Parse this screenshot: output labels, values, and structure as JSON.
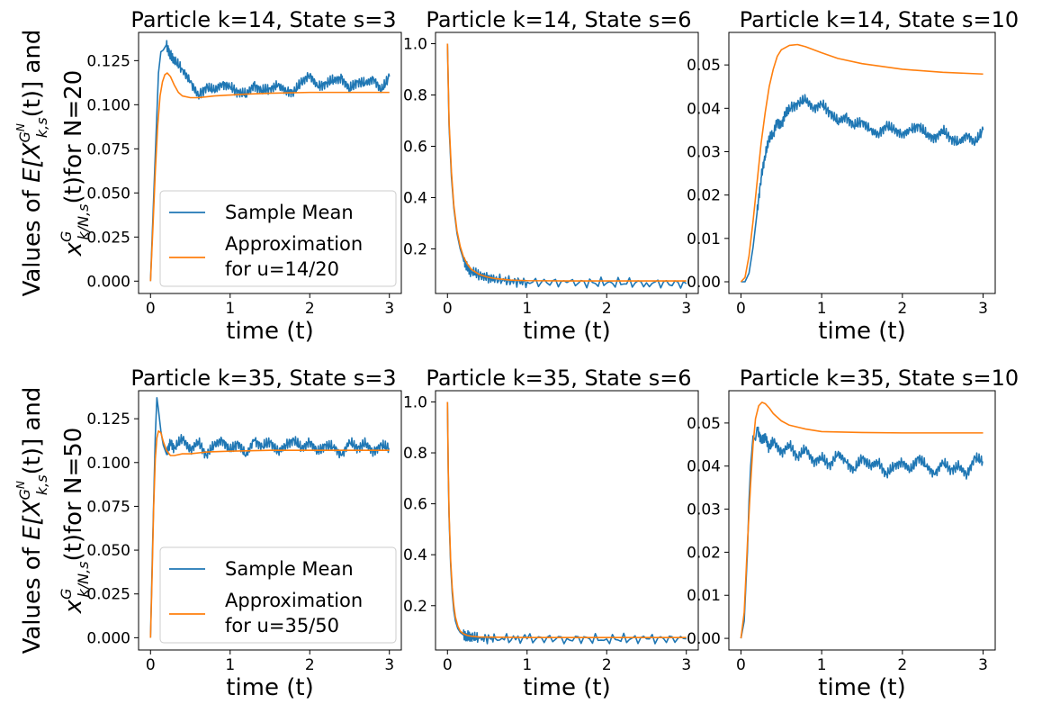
{
  "figure": {
    "row_ylabels": [
      {
        "line1": "Values of ",
        "italic": "E[X",
        "sup": "G",
        "supsup": "N",
        "sub": "k,s",
        "after": "(t)] and",
        "line2_x": "x",
        "line2_sup": "G",
        "line2_sub": "k/N,s",
        "line2_after": "(t)for N=20"
      },
      {
        "line1": "Values of ",
        "italic": "E[X",
        "sup": "G",
        "supsup": "N",
        "sub": "k,s",
        "after": "(t)] and",
        "line2_x": "x",
        "line2_sup": "G",
        "line2_sub": "k/N,s",
        "line2_after": "(t)for N=50"
      }
    ]
  },
  "colors": {
    "sample_mean": "#1f77b4",
    "approximation": "#ff7f0e",
    "axes": "#000000"
  },
  "chart_data": [
    {
      "type": "line",
      "title": "Particle k=14, State s=3",
      "xlabel": "time (t)",
      "ylabel": "",
      "xlim": [
        -0.15,
        3.15
      ],
      "ylim": [
        -0.007,
        0.141
      ],
      "xticks": [
        "0",
        "1",
        "2",
        "3"
      ],
      "xtick_values": [
        0,
        1,
        2,
        3
      ],
      "yticks": [
        "0.000",
        "0.025",
        "0.050",
        "0.075",
        "0.100",
        "0.125"
      ],
      "ytick_values": [
        0,
        0.025,
        0.05,
        0.075,
        0.1,
        0.125
      ],
      "legend": {
        "placement": "lower-right",
        "entries": [
          "Sample Mean",
          "Approximation",
          " for u=14/20"
        ]
      },
      "series": [
        {
          "name": "Sample Mean",
          "color": "#1f77b4",
          "x": [
            0,
            0.05,
            0.1,
            0.13,
            0.16,
            0.2,
            0.25,
            0.3,
            0.4,
            0.5,
            0.6,
            0.7,
            0.8,
            0.9,
            1.0,
            1.1,
            1.2,
            1.3,
            1.4,
            1.5,
            1.6,
            1.7,
            1.8,
            1.9,
            2.0,
            2.1,
            2.2,
            2.3,
            2.4,
            2.5,
            2.6,
            2.7,
            2.8,
            2.9,
            3.0
          ],
          "values": [
            0.0,
            0.06,
            0.118,
            0.13,
            0.131,
            0.134,
            0.128,
            0.125,
            0.12,
            0.113,
            0.105,
            0.11,
            0.108,
            0.112,
            0.11,
            0.107,
            0.106,
            0.111,
            0.108,
            0.109,
            0.111,
            0.108,
            0.107,
            0.113,
            0.117,
            0.11,
            0.112,
            0.114,
            0.115,
            0.109,
            0.113,
            0.112,
            0.115,
            0.108,
            0.116
          ]
        },
        {
          "name": "Approximation",
          "color": "#ff7f0e",
          "x": [
            0,
            0.03,
            0.06,
            0.09,
            0.12,
            0.15,
            0.18,
            0.21,
            0.25,
            0.3,
            0.35,
            0.4,
            0.5,
            0.6,
            0.7,
            0.8,
            1.0,
            1.2,
            1.5,
            2.0,
            2.5,
            3.0
          ],
          "values": [
            0.0,
            0.03,
            0.062,
            0.088,
            0.105,
            0.113,
            0.117,
            0.118,
            0.116,
            0.111,
            0.107,
            0.105,
            0.104,
            0.104,
            0.1045,
            0.105,
            0.1055,
            0.106,
            0.1065,
            0.107,
            0.107,
            0.107
          ]
        }
      ]
    },
    {
      "type": "line",
      "title": "Particle k=14, State s=6",
      "xlabel": "time (t)",
      "ylabel": "",
      "xlim": [
        -0.15,
        3.15
      ],
      "ylim": [
        0.026,
        1.044
      ],
      "xticks": [
        "0",
        "1",
        "2",
        "3"
      ],
      "xtick_values": [
        0,
        1,
        2,
        3
      ],
      "yticks": [
        "0.2",
        "0.4",
        "0.6",
        "0.8",
        "1.0"
      ],
      "ytick_values": [
        0.2,
        0.4,
        0.6,
        0.8,
        1.0
      ],
      "series": [
        {
          "name": "Sample Mean",
          "color": "#1f77b4",
          "x": [
            0,
            0.02,
            0.05,
            0.08,
            0.12,
            0.16,
            0.2,
            0.25,
            0.3,
            0.4,
            0.5,
            0.6,
            0.8,
            1.0,
            1.5,
            2.0,
            2.5,
            3.0
          ],
          "values": [
            1.0,
            0.68,
            0.48,
            0.36,
            0.26,
            0.2,
            0.16,
            0.13,
            0.11,
            0.098,
            0.088,
            0.082,
            0.074,
            0.07,
            0.069,
            0.067,
            0.068,
            0.064
          ]
        },
        {
          "name": "Approximation",
          "color": "#ff7f0e",
          "x": [
            0,
            0.02,
            0.05,
            0.08,
            0.12,
            0.16,
            0.2,
            0.25,
            0.3,
            0.4,
            0.5,
            0.6,
            0.8,
            1.0,
            1.5,
            2.0,
            2.5,
            3.0
          ],
          "values": [
            1.0,
            0.7,
            0.5,
            0.37,
            0.27,
            0.21,
            0.17,
            0.14,
            0.12,
            0.1,
            0.09,
            0.084,
            0.078,
            0.076,
            0.075,
            0.075,
            0.075,
            0.075
          ]
        }
      ]
    },
    {
      "type": "line",
      "title": "Particle k=14, State s=10",
      "xlabel": "time (t)",
      "ylabel": "",
      "xlim": [
        -0.15,
        3.15
      ],
      "ylim": [
        -0.0027,
        0.0575
      ],
      "xticks": [
        "0",
        "1",
        "2",
        "3"
      ],
      "xtick_values": [
        0,
        1,
        2,
        3
      ],
      "yticks": [
        "0.00",
        "0.01",
        "0.02",
        "0.03",
        "0.04",
        "0.05"
      ],
      "ytick_values": [
        0,
        0.01,
        0.02,
        0.03,
        0.04,
        0.05
      ],
      "series": [
        {
          "name": "Sample Mean",
          "color": "#1f77b4",
          "x": [
            0,
            0.05,
            0.1,
            0.15,
            0.2,
            0.25,
            0.3,
            0.35,
            0.4,
            0.45,
            0.5,
            0.55,
            0.6,
            0.7,
            0.8,
            0.9,
            1.0,
            1.1,
            1.2,
            1.3,
            1.4,
            1.5,
            1.6,
            1.7,
            1.8,
            1.9,
            2.0,
            2.1,
            2.2,
            2.3,
            2.4,
            2.5,
            2.6,
            2.7,
            2.8,
            2.9,
            3.0
          ],
          "values": [
            0.0,
            0.0,
            0.002,
            0.008,
            0.016,
            0.024,
            0.029,
            0.033,
            0.034,
            0.037,
            0.036,
            0.039,
            0.04,
            0.041,
            0.042,
            0.04,
            0.041,
            0.039,
            0.037,
            0.038,
            0.036,
            0.037,
            0.035,
            0.034,
            0.036,
            0.035,
            0.034,
            0.035,
            0.036,
            0.034,
            0.033,
            0.035,
            0.033,
            0.032,
            0.034,
            0.032,
            0.035
          ]
        },
        {
          "name": "Approximation",
          "color": "#ff7f0e",
          "x": [
            0,
            0.05,
            0.1,
            0.15,
            0.2,
            0.25,
            0.3,
            0.35,
            0.4,
            0.45,
            0.5,
            0.6,
            0.7,
            0.8,
            1.0,
            1.2,
            1.5,
            2.0,
            2.5,
            3.0
          ],
          "values": [
            0.0,
            0.001,
            0.006,
            0.014,
            0.023,
            0.032,
            0.039,
            0.045,
            0.049,
            0.052,
            0.0535,
            0.0545,
            0.0547,
            0.0542,
            0.0528,
            0.0515,
            0.0503,
            0.049,
            0.0483,
            0.0479
          ]
        }
      ]
    },
    {
      "type": "line",
      "title": "Particle k=35, State s=3",
      "xlabel": "time (t)",
      "ylabel": "",
      "xlim": [
        -0.15,
        3.15
      ],
      "ylim": [
        -0.007,
        0.141
      ],
      "xticks": [
        "0",
        "1",
        "2",
        "3"
      ],
      "xtick_values": [
        0,
        1,
        2,
        3
      ],
      "yticks": [
        "0.000",
        "0.025",
        "0.050",
        "0.075",
        "0.100",
        "0.125"
      ],
      "ytick_values": [
        0,
        0.025,
        0.05,
        0.075,
        0.1,
        0.125
      ],
      "legend": {
        "placement": "lower-right",
        "entries": [
          "Sample Mean",
          "Approximation",
          " for u=35/50"
        ]
      },
      "series": [
        {
          "name": "Sample Mean",
          "color": "#1f77b4",
          "x": [
            0,
            0.03,
            0.06,
            0.08,
            0.1,
            0.13,
            0.16,
            0.2,
            0.25,
            0.3,
            0.4,
            0.5,
            0.6,
            0.7,
            0.8,
            0.9,
            1.0,
            1.1,
            1.2,
            1.3,
            1.4,
            1.5,
            1.6,
            1.7,
            1.8,
            1.9,
            2.0,
            2.1,
            2.2,
            2.3,
            2.4,
            2.5,
            2.6,
            2.7,
            2.8,
            2.9,
            3.0
          ],
          "values": [
            0.0,
            0.06,
            0.115,
            0.137,
            0.13,
            0.118,
            0.11,
            0.105,
            0.112,
            0.108,
            0.114,
            0.107,
            0.112,
            0.104,
            0.11,
            0.113,
            0.107,
            0.111,
            0.104,
            0.113,
            0.109,
            0.112,
            0.106,
            0.11,
            0.113,
            0.108,
            0.112,
            0.106,
            0.11,
            0.109,
            0.104,
            0.112,
            0.108,
            0.111,
            0.106,
            0.11,
            0.108
          ]
        },
        {
          "name": "Approximation",
          "color": "#ff7f0e",
          "x": [
            0,
            0.02,
            0.04,
            0.06,
            0.08,
            0.1,
            0.13,
            0.16,
            0.2,
            0.25,
            0.3,
            0.4,
            0.5,
            0.7,
            1.0,
            1.5,
            2.0,
            2.5,
            3.0
          ],
          "values": [
            0.0,
            0.035,
            0.075,
            0.102,
            0.114,
            0.118,
            0.117,
            0.112,
            0.107,
            0.104,
            0.104,
            0.105,
            0.105,
            0.106,
            0.1065,
            0.107,
            0.107,
            0.107,
            0.107
          ]
        }
      ]
    },
    {
      "type": "line",
      "title": "Particle k=35, State s=6",
      "xlabel": "time (t)",
      "ylabel": "",
      "xlim": [
        -0.15,
        3.15
      ],
      "ylim": [
        0.026,
        1.044
      ],
      "xticks": [
        "0",
        "1",
        "2",
        "3"
      ],
      "xtick_values": [
        0,
        1,
        2,
        3
      ],
      "yticks": [
        "0.2",
        "0.4",
        "0.6",
        "0.8",
        "1.0"
      ],
      "ytick_values": [
        0.2,
        0.4,
        0.6,
        0.8,
        1.0
      ],
      "series": [
        {
          "name": "Sample Mean",
          "color": "#1f77b4",
          "x": [
            0,
            0.01,
            0.02,
            0.04,
            0.06,
            0.08,
            0.1,
            0.13,
            0.16,
            0.2,
            0.25,
            0.3,
            0.4,
            0.6,
            1.0,
            1.5,
            2.0,
            2.5,
            3.0
          ],
          "values": [
            1.0,
            0.72,
            0.55,
            0.36,
            0.25,
            0.18,
            0.14,
            0.11,
            0.095,
            0.085,
            0.08,
            0.075,
            0.072,
            0.071,
            0.07,
            0.071,
            0.069,
            0.07,
            0.07
          ]
        },
        {
          "name": "Approximation",
          "color": "#ff7f0e",
          "x": [
            0,
            0.01,
            0.02,
            0.04,
            0.06,
            0.08,
            0.1,
            0.13,
            0.16,
            0.2,
            0.25,
            0.3,
            0.4,
            0.6,
            1.0,
            1.5,
            2.0,
            2.5,
            3.0
          ],
          "values": [
            1.0,
            0.74,
            0.57,
            0.38,
            0.27,
            0.2,
            0.155,
            0.12,
            0.1,
            0.09,
            0.083,
            0.08,
            0.077,
            0.076,
            0.075,
            0.075,
            0.075,
            0.075,
            0.075
          ]
        }
      ]
    },
    {
      "type": "line",
      "title": "Particle k=35, State s=10",
      "xlabel": "time (t)",
      "ylabel": "",
      "xlim": [
        -0.15,
        3.15
      ],
      "ylim": [
        -0.0027,
        0.0575
      ],
      "xticks": [
        "0",
        "1",
        "2",
        "3"
      ],
      "xtick_values": [
        0,
        1,
        2,
        3
      ],
      "yticks": [
        "0.00",
        "0.01",
        "0.02",
        "0.03",
        "0.04",
        "0.05"
      ],
      "ytick_values": [
        0,
        0.01,
        0.02,
        0.03,
        0.04,
        0.05
      ],
      "series": [
        {
          "name": "Sample Mean",
          "color": "#1f77b4",
          "x": [
            0,
            0.04,
            0.08,
            0.1,
            0.12,
            0.15,
            0.18,
            0.2,
            0.25,
            0.3,
            0.35,
            0.4,
            0.5,
            0.6,
            0.7,
            0.8,
            0.9,
            1.0,
            1.1,
            1.2,
            1.3,
            1.4,
            1.5,
            1.6,
            1.7,
            1.8,
            1.9,
            2.0,
            2.1,
            2.2,
            2.3,
            2.4,
            2.5,
            2.6,
            2.7,
            2.8,
            2.9,
            3.0
          ],
          "values": [
            0.0,
            0.004,
            0.02,
            0.032,
            0.04,
            0.047,
            0.046,
            0.049,
            0.046,
            0.047,
            0.044,
            0.046,
            0.043,
            0.045,
            0.042,
            0.044,
            0.041,
            0.042,
            0.04,
            0.043,
            0.041,
            0.039,
            0.042,
            0.04,
            0.041,
            0.038,
            0.04,
            0.041,
            0.039,
            0.042,
            0.04,
            0.038,
            0.041,
            0.039,
            0.04,
            0.038,
            0.042,
            0.041
          ]
        },
        {
          "name": "Approximation",
          "color": "#ff7f0e",
          "x": [
            0,
            0.04,
            0.08,
            0.12,
            0.15,
            0.18,
            0.22,
            0.26,
            0.3,
            0.35,
            0.4,
            0.5,
            0.6,
            0.8,
            1.0,
            1.5,
            2.0,
            2.5,
            3.0
          ],
          "values": [
            0.0,
            0.006,
            0.022,
            0.036,
            0.045,
            0.051,
            0.054,
            0.0548,
            0.0545,
            0.0535,
            0.0522,
            0.0505,
            0.0495,
            0.0486,
            0.048,
            0.0478,
            0.0477,
            0.0477,
            0.0477
          ]
        }
      ]
    }
  ]
}
